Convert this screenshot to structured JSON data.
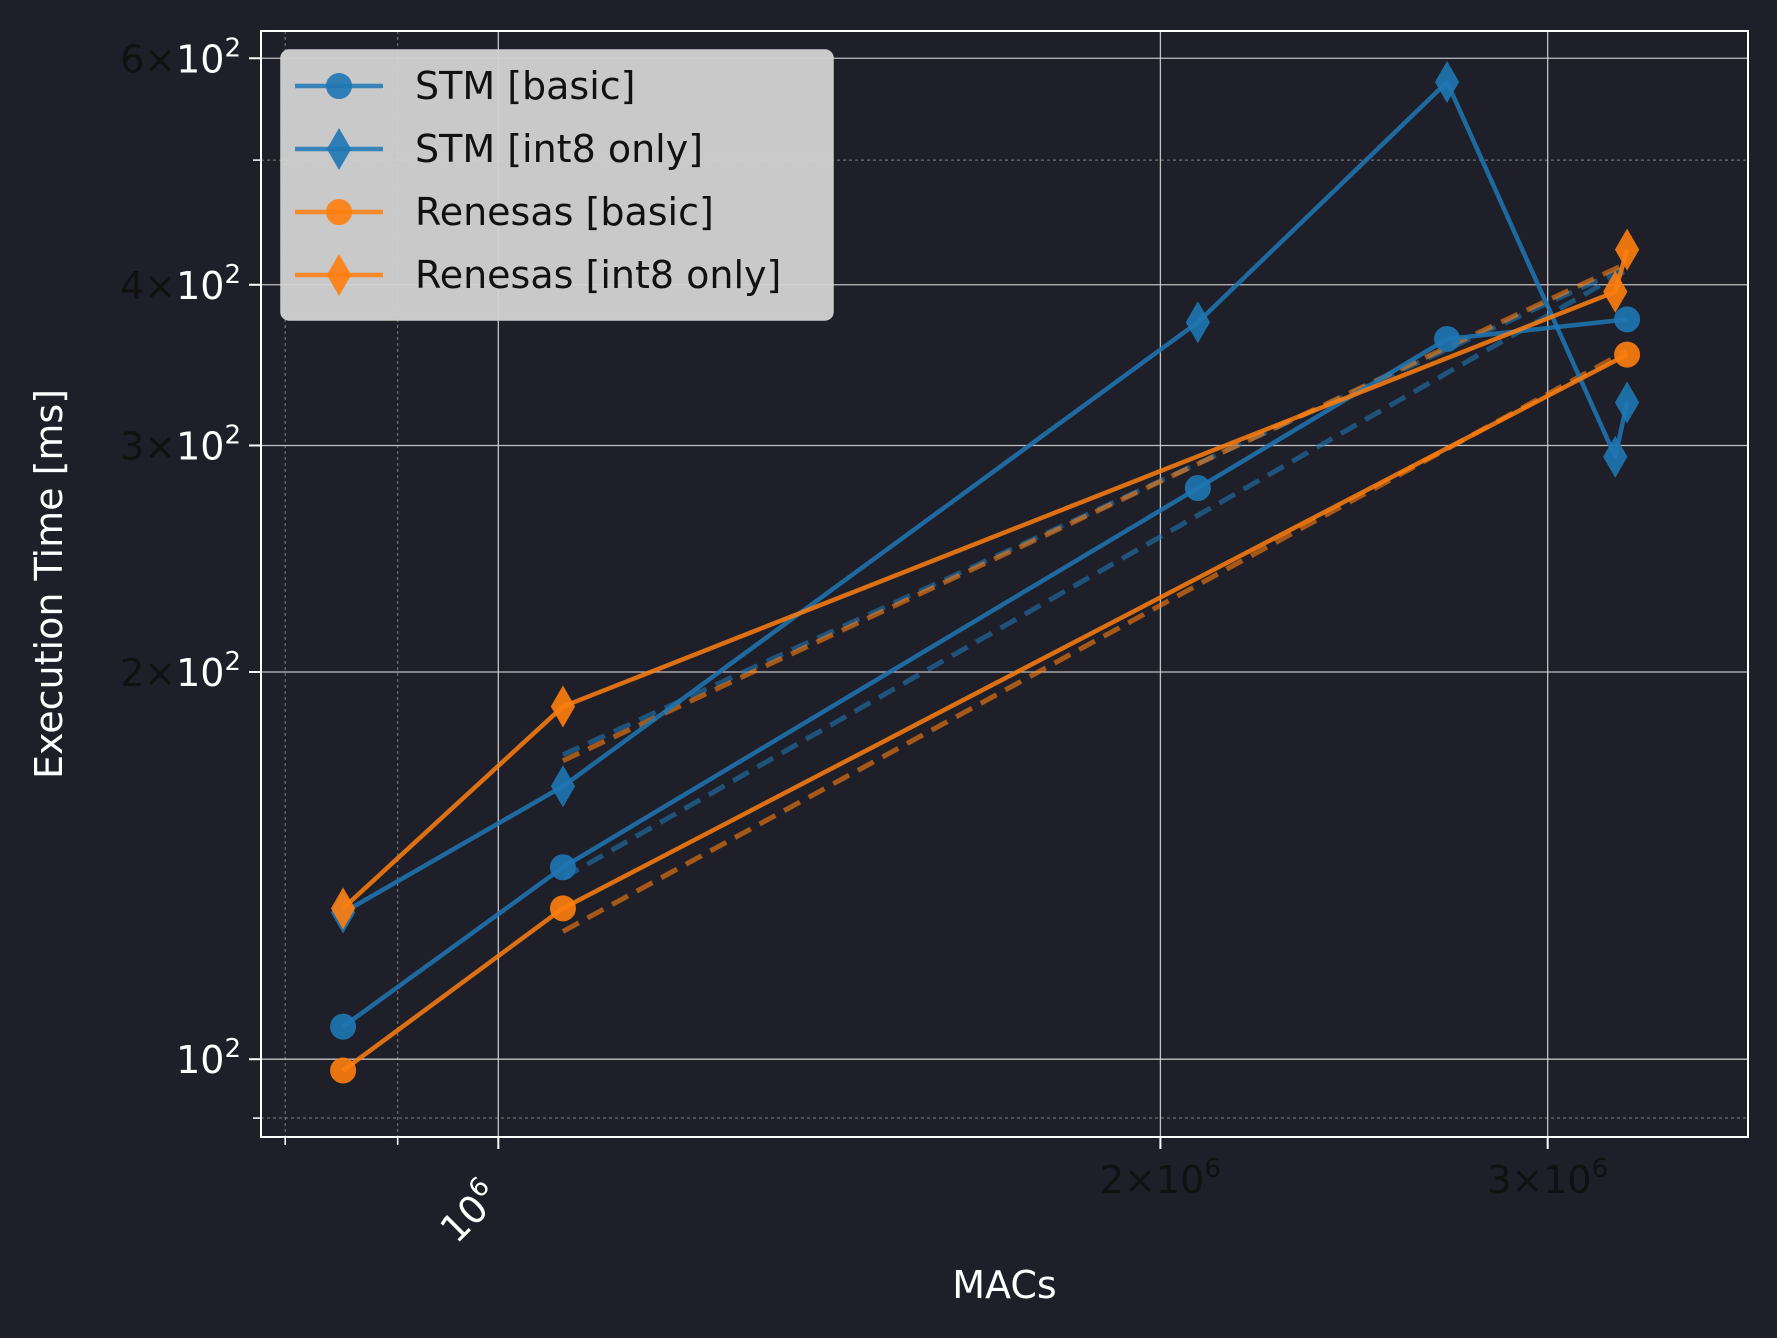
{
  "chart_data": {
    "type": "line",
    "xlabel": "MACs",
    "ylabel": "Execution Time [ms]",
    "x_scale": "log",
    "y_scale": "log",
    "xlim": [
      780000,
      3700000
    ],
    "ylim": [
      87,
      630
    ],
    "grid": true,
    "legend_placement": "top-left",
    "x_ticks": [
      {
        "value": 1000000,
        "mantissa": "",
        "base": "10",
        "exp": "6"
      },
      {
        "value": 2000000,
        "mantissa": "2",
        "base": "10",
        "exp": "6"
      },
      {
        "value": 3000000,
        "mantissa": "3",
        "base": "10",
        "exp": "6"
      }
    ],
    "y_ticks": [
      {
        "value": 100,
        "mantissa": "",
        "base": "10",
        "exp": "2"
      },
      {
        "value": 200,
        "mantissa": "2",
        "base": "10",
        "exp": "2"
      },
      {
        "value": 300,
        "mantissa": "3",
        "base": "10",
        "exp": "2"
      },
      {
        "value": 400,
        "mantissa": "4",
        "base": "10",
        "exp": "2"
      },
      {
        "value": 600,
        "mantissa": "6",
        "base": "10",
        "exp": "2"
      }
    ],
    "series": [
      {
        "name": "STM [basic]",
        "color": "#1f77b4",
        "marker": "circle",
        "x": [
          850000,
          1070000,
          2080000,
          2700000,
          3260000
        ],
        "y": [
          106,
          141,
          278,
          363,
          376
        ]
      },
      {
        "name": "STM [int8 only]",
        "color": "#1f77b4",
        "marker": "diamond",
        "x": [
          850000,
          1070000,
          2080000,
          2700000,
          3220000,
          3260000
        ],
        "y": [
          130,
          163,
          374,
          575,
          294,
          324
        ]
      },
      {
        "name": "Renesas [basic]",
        "color": "#ff7f0e",
        "marker": "circle",
        "x": [
          850000,
          1070000,
          3260000
        ],
        "y": [
          98,
          131,
          353
        ]
      },
      {
        "name": "Renesas [int8 only]",
        "color": "#ff7f0e",
        "marker": "diamond",
        "x": [
          850000,
          1070000,
          3220000,
          3260000
        ],
        "y": [
          131,
          188,
          395,
          426
        ]
      }
    ]
  }
}
